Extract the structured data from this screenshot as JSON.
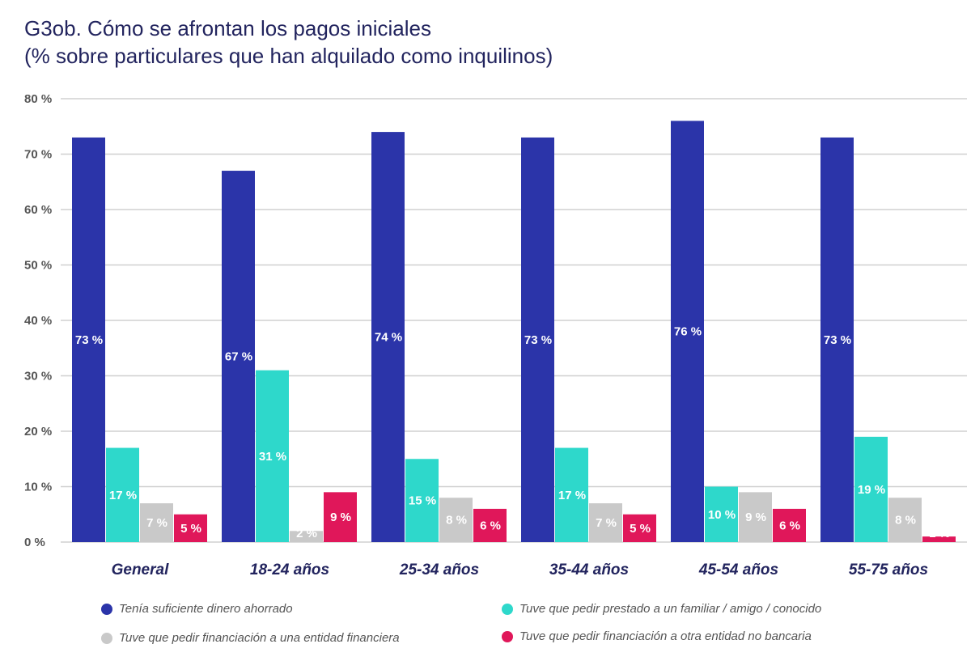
{
  "title_line1": "G3ob. Cómo se afrontan los pagos iniciales",
  "title_line2": "(% sobre particulares que han alquilado como inquilinos)",
  "chart_data": {
    "type": "bar",
    "title": "G3ob. Cómo se afrontan los pagos iniciales (% sobre particulares que han alquilado como inquilinos)",
    "xlabel": "",
    "ylabel": "",
    "ylim": [
      0,
      80
    ],
    "yticks": [
      0,
      10,
      20,
      30,
      40,
      50,
      60,
      70,
      80
    ],
    "ytick_labels": [
      "0 %",
      "10 %",
      "20 %",
      "30 %",
      "40 %",
      "50 %",
      "60 %",
      "70 %",
      "80 %"
    ],
    "grid": true,
    "legend_position": "bottom",
    "categories": [
      "General",
      "18-24 años",
      "25-34 años",
      "35-44 años",
      "45-54 años",
      "55-75 años"
    ],
    "series": [
      {
        "name": "Tenía suficiente dinero ahorrado",
        "color": "#2b34a9",
        "values": [
          73,
          67,
          74,
          73,
          76,
          73
        ]
      },
      {
        "name": "Tuve que pedir prestado a un familiar / amigo / conocido",
        "color": "#2ed8cb",
        "values": [
          17,
          31,
          15,
          17,
          10,
          19
        ]
      },
      {
        "name": "Tuve que pedir financiación a una entidad financiera",
        "color": "#c9c9c9",
        "values": [
          7,
          2,
          8,
          7,
          9,
          8
        ]
      },
      {
        "name": "Tuve que pedir financiación a otra entidad no bancaria",
        "color": "#e0175a",
        "values": [
          5,
          9,
          6,
          5,
          6,
          1
        ]
      }
    ]
  }
}
